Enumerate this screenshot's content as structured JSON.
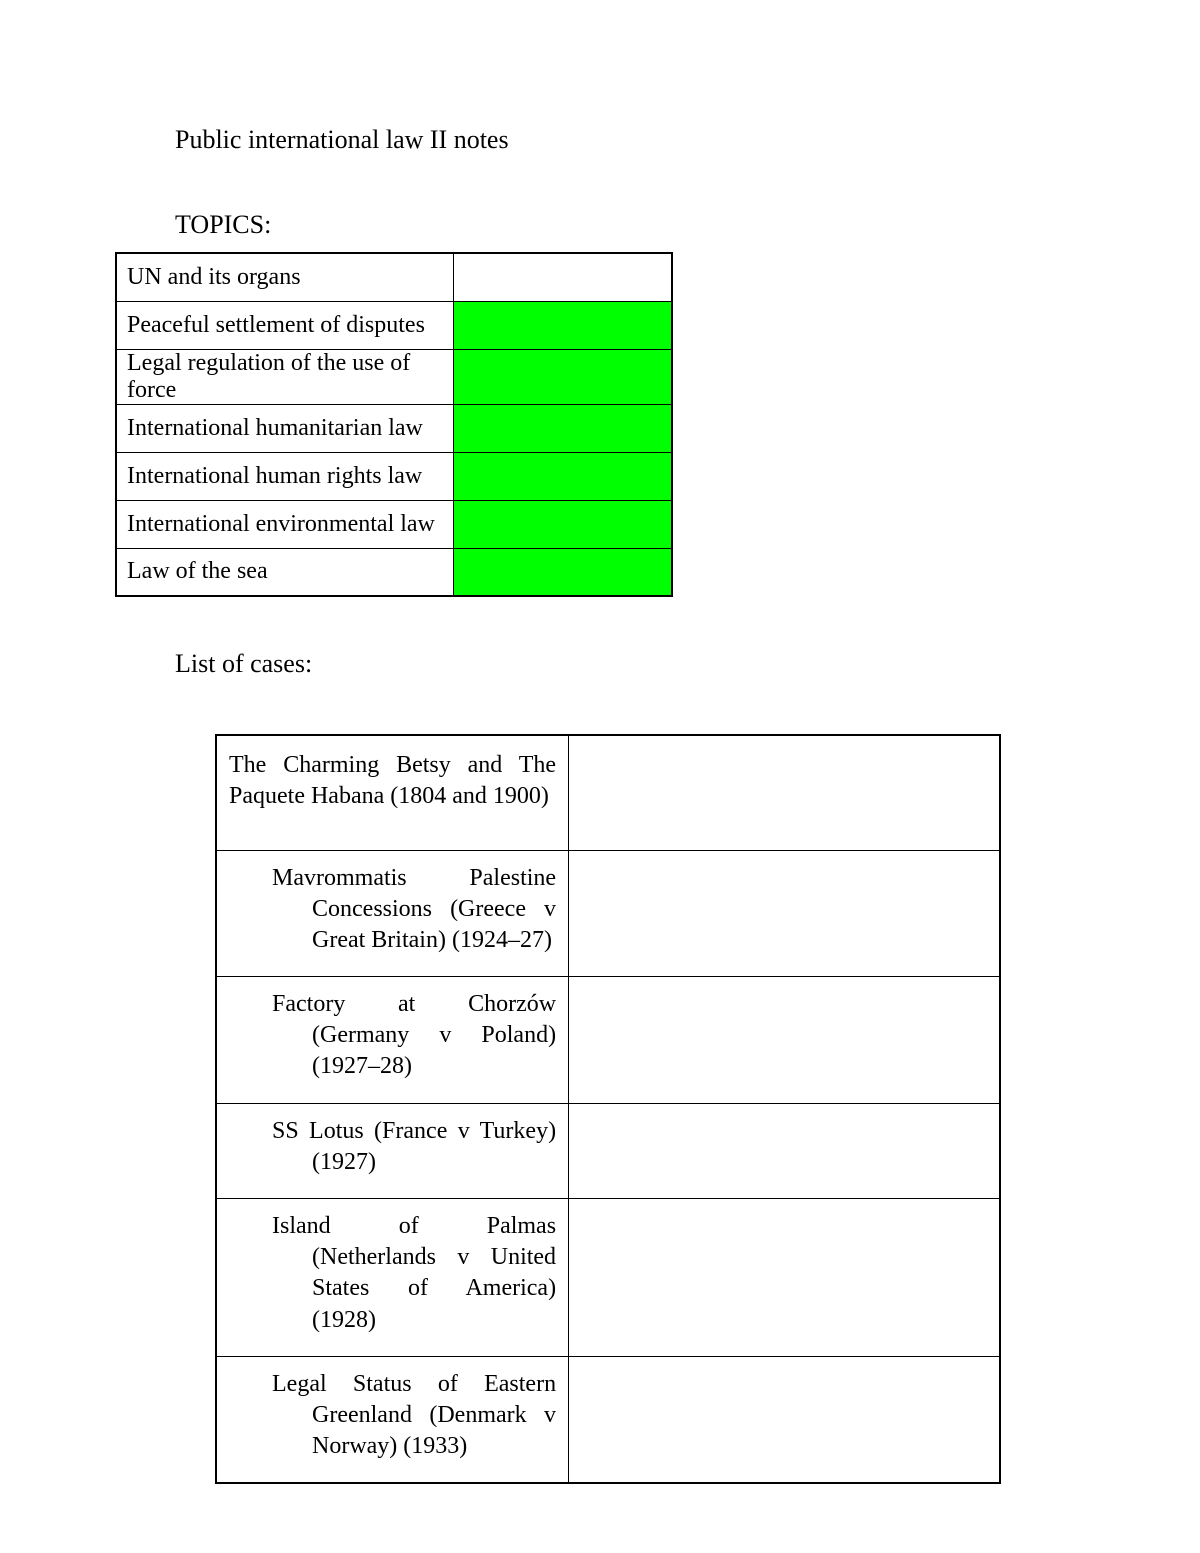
{
  "title": "Public international law II notes",
  "topics_header": "TOPICS:",
  "topics": {
    "rows": [
      {
        "name": "UN and its organs",
        "green": false
      },
      {
        "name": "Peaceful settlement of disputes",
        "green": true
      },
      {
        "name": "Legal regulation of the use of force",
        "green": true
      },
      {
        "name": "International humanitarian law",
        "green": true
      },
      {
        "name": "International human rights law",
        "green": true
      },
      {
        "name": "International environmental law",
        "green": true
      },
      {
        "name": "Law of the sea",
        "green": true
      }
    ],
    "border_color": "#000000",
    "green_color": "#00ff00",
    "background_color": "#ffffff"
  },
  "cases_header": "List of cases:",
  "cases": {
    "rows": [
      {
        "name": "The Charming Betsy and The Paquete Habana (1804 and 1900)",
        "indented": false
      },
      {
        "name": "Mavrommatis Palestine Concessions (Greece v Great Britain) (1924–27)",
        "indented": true
      },
      {
        "name": "Factory at Chorzów (Germany v Poland) (1927–28)",
        "indented": true
      },
      {
        "name": "SS Lotus (France v Turkey) (1927)",
        "indented": true
      },
      {
        "name": "Island of Palmas (Netherlands v United States of America) (1928)",
        "indented": true
      },
      {
        "name": "Legal Status of Eastern Greenland (Denmark v Norway) (1933)",
        "indented": true
      }
    ],
    "border_color": "#000000",
    "background_color": "#ffffff"
  },
  "text_color": "#000000",
  "font_family": "Times New Roman"
}
